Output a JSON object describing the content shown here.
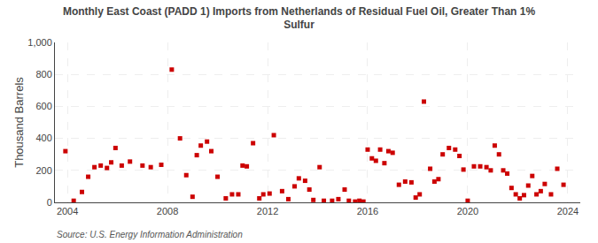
{
  "chart_data": {
    "type": "scatter",
    "title": "Monthly East Coast (PADD 1) Imports from Netherlands of Residual Fuel Oil, Greater Than 1%\nSulfur",
    "ylabel": "Thousand Barrels",
    "annotations": [
      "Source: U.S. Energy Information Administration"
    ],
    "color": "#cc0000",
    "marker": "square",
    "grid": true,
    "xlim": [
      2003.5,
      2024.5
    ],
    "ylim": [
      0,
      1000
    ],
    "xticks": [
      2004,
      2008,
      2012,
      2016,
      2020,
      2024
    ],
    "yticks": [
      0,
      200,
      400,
      600,
      800,
      {
        "value": 1000,
        "label": "1,000"
      }
    ],
    "x": [
      2003.92,
      2004.25,
      2004.58,
      2004.83,
      2005.08,
      2005.33,
      2005.58,
      2005.75,
      2005.92,
      2006.17,
      2006.5,
      2007.0,
      2007.33,
      2007.75,
      2008.17,
      2008.5,
      2008.75,
      2009.0,
      2009.17,
      2009.33,
      2009.58,
      2009.75,
      2010.0,
      2010.33,
      2010.58,
      2010.83,
      2011.0,
      2011.17,
      2011.42,
      2011.67,
      2011.83,
      2012.08,
      2012.25,
      2012.58,
      2012.83,
      2013.08,
      2013.25,
      2013.5,
      2013.67,
      2013.83,
      2014.08,
      2014.25,
      2014.58,
      2014.83,
      2015.08,
      2015.25,
      2015.5,
      2015.67,
      2015.83,
      2016.0,
      2016.17,
      2016.33,
      2016.5,
      2016.67,
      2016.83,
      2017.0,
      2017.25,
      2017.5,
      2017.75,
      2017.92,
      2018.08,
      2018.25,
      2018.5,
      2018.67,
      2018.83,
      2019.0,
      2019.25,
      2019.5,
      2019.67,
      2019.83,
      2020.0,
      2020.25,
      2020.5,
      2020.75,
      2020.92,
      2021.08,
      2021.25,
      2021.42,
      2021.58,
      2021.75,
      2021.92,
      2022.08,
      2022.25,
      2022.42,
      2022.58,
      2022.75,
      2022.92,
      2023.08,
      2023.33,
      2023.58,
      2023.83
    ],
    "values": [
      320,
      10,
      65,
      160,
      220,
      230,
      215,
      250,
      340,
      230,
      255,
      230,
      220,
      235,
      830,
      400,
      170,
      35,
      295,
      355,
      380,
      320,
      160,
      25,
      50,
      50,
      230,
      225,
      370,
      25,
      50,
      55,
      420,
      70,
      20,
      100,
      150,
      135,
      80,
      15,
      220,
      10,
      10,
      20,
      80,
      10,
      5,
      10,
      5,
      330,
      275,
      260,
      330,
      245,
      320,
      310,
      110,
      130,
      125,
      30,
      50,
      630,
      210,
      130,
      145,
      300,
      340,
      330,
      290,
      205,
      10,
      225,
      225,
      220,
      200,
      355,
      300,
      200,
      180,
      90,
      50,
      25,
      45,
      105,
      165,
      50,
      70,
      115,
      50,
      210,
      110
    ]
  }
}
